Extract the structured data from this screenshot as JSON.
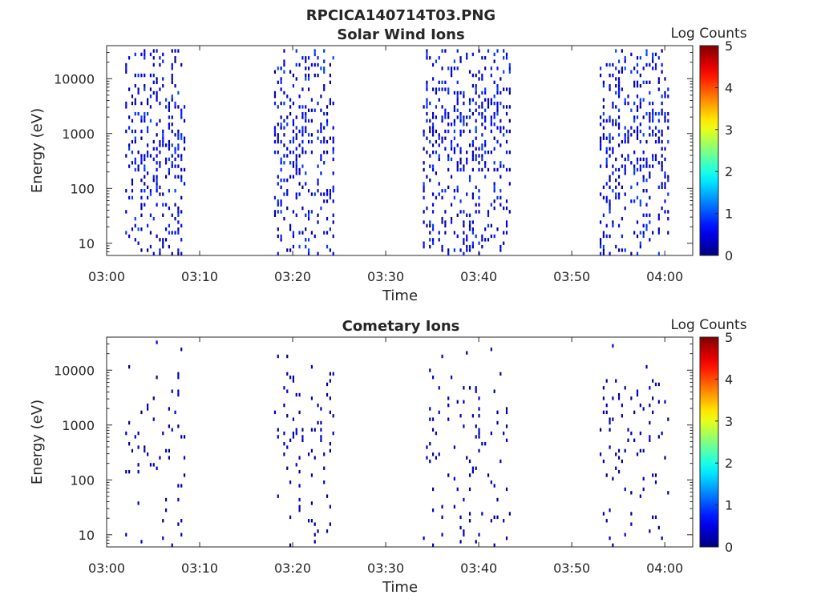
{
  "figure_title": "RPCICA140714T03.PNG",
  "colors": {
    "axis": "#262626",
    "background": "#ffffff",
    "colormap": "jet"
  },
  "chart_data": [
    {
      "type": "heatmap",
      "title": "Solar Wind Ions",
      "xlabel": "Time",
      "ylabel": "Energy (eV)",
      "y_scale": "log",
      "xlim": [
        "03:00",
        "04:03"
      ],
      "ylim": [
        6,
        40000
      ],
      "x_ticks": [
        "03:00",
        "03:10",
        "03:20",
        "03:30",
        "03:40",
        "03:50",
        "04:00"
      ],
      "y_ticks": [
        "10",
        "100",
        "1000",
        "10000"
      ],
      "colorbar": {
        "label": "Log Counts",
        "range": [
          0,
          5
        ],
        "ticks": [
          "0",
          "1",
          "2",
          "3",
          "4",
          "5"
        ]
      },
      "active_intervals": [
        {
          "start": "03:02",
          "end": "03:08",
          "dense_minutes": [
            "03:03",
            "03:04",
            "03:06",
            "03:07"
          ]
        },
        {
          "start": "03:18",
          "end": "03:24",
          "dense_minutes": [
            "03:19",
            "03:20",
            "03:21",
            "03:22",
            "03:23"
          ]
        },
        {
          "start": "03:34",
          "end": "03:43",
          "dense_minutes": [
            "03:35",
            "03:36",
            "03:37",
            "03:39",
            "03:40",
            "03:41",
            "03:42"
          ]
        },
        {
          "start": "03:53",
          "end": "04:00",
          "dense_minutes": [
            "03:54",
            "03:55",
            "03:56",
            "03:57",
            "03:58"
          ]
        }
      ],
      "typical_log_counts": [
        0,
        1
      ]
    },
    {
      "type": "heatmap",
      "title": "Cometary Ions",
      "xlabel": "Time",
      "ylabel": "Energy (eV)",
      "y_scale": "log",
      "xlim": [
        "03:00",
        "04:03"
      ],
      "ylim": [
        6,
        40000
      ],
      "x_ticks": [
        "03:00",
        "03:10",
        "03:20",
        "03:30",
        "03:40",
        "03:50",
        "04:00"
      ],
      "y_ticks": [
        "10",
        "100",
        "1000",
        "10000"
      ],
      "colorbar": {
        "label": "Log Counts",
        "range": [
          0,
          5
        ],
        "ticks": [
          "0",
          "1",
          "2",
          "3",
          "4",
          "5"
        ]
      },
      "active_intervals": [
        {
          "start": "03:02",
          "end": "03:08"
        },
        {
          "start": "03:18",
          "end": "03:24"
        },
        {
          "start": "03:34",
          "end": "03:43"
        },
        {
          "start": "03:53",
          "end": "04:00"
        }
      ],
      "typical_log_counts": [
        0,
        0.5
      ]
    }
  ]
}
